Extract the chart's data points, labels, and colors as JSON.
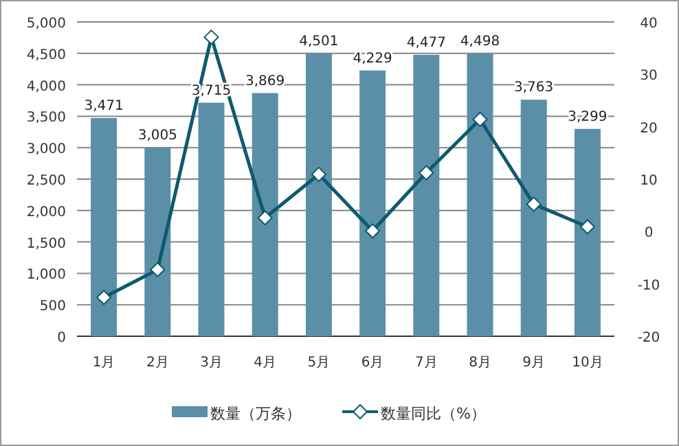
{
  "chart_data": {
    "type": "bar",
    "categories": [
      "1月",
      "2月",
      "3月",
      "4月",
      "5月",
      "6月",
      "7月",
      "8月",
      "9月",
      "10月"
    ],
    "series": [
      {
        "name": "数量（万条）",
        "color": "#5b8fa8",
        "values": [
          3471,
          3005,
          3715,
          3869,
          4501,
          4229,
          4477,
          4498,
          3763,
          3299
        ],
        "value_labels": [
          "3,471",
          "3,005",
          "3,715",
          "3,869",
          "4,501",
          "4,229",
          "4,477",
          "4,498",
          "3,763",
          "3,299"
        ]
      },
      {
        "name": "数量同比（%）",
        "type": "line",
        "axis": "y2",
        "color": "#0d5a6e",
        "marker": "diamond",
        "values": [
          -12.6,
          -7.3,
          37.1,
          2.6,
          10.9,
          0.1,
          11.2,
          21.4,
          5.2,
          0.9
        ]
      }
    ],
    "ylim": [
      0,
      5000
    ],
    "yticks": [
      0,
      500,
      {
        "value": 1000,
        "label": "1,000"
      },
      {
        "value": 1500,
        "label": "1,500"
      },
      {
        "value": 2000,
        "label": "2,000"
      },
      {
        "value": 2500,
        "label": "2,500"
      },
      {
        "value": 3000,
        "label": "3,000"
      },
      {
        "value": 3500,
        "label": "3,500"
      },
      {
        "value": 4000,
        "label": "4,000"
      },
      {
        "value": 4500,
        "label": "4,500"
      },
      {
        "value": 5000,
        "label": "5,000"
      }
    ],
    "y2lim": [
      -20,
      40
    ],
    "y2ticks": [
      -20,
      -10,
      0,
      10,
      20,
      30,
      40
    ],
    "grid": "y",
    "legend": "bottom"
  }
}
